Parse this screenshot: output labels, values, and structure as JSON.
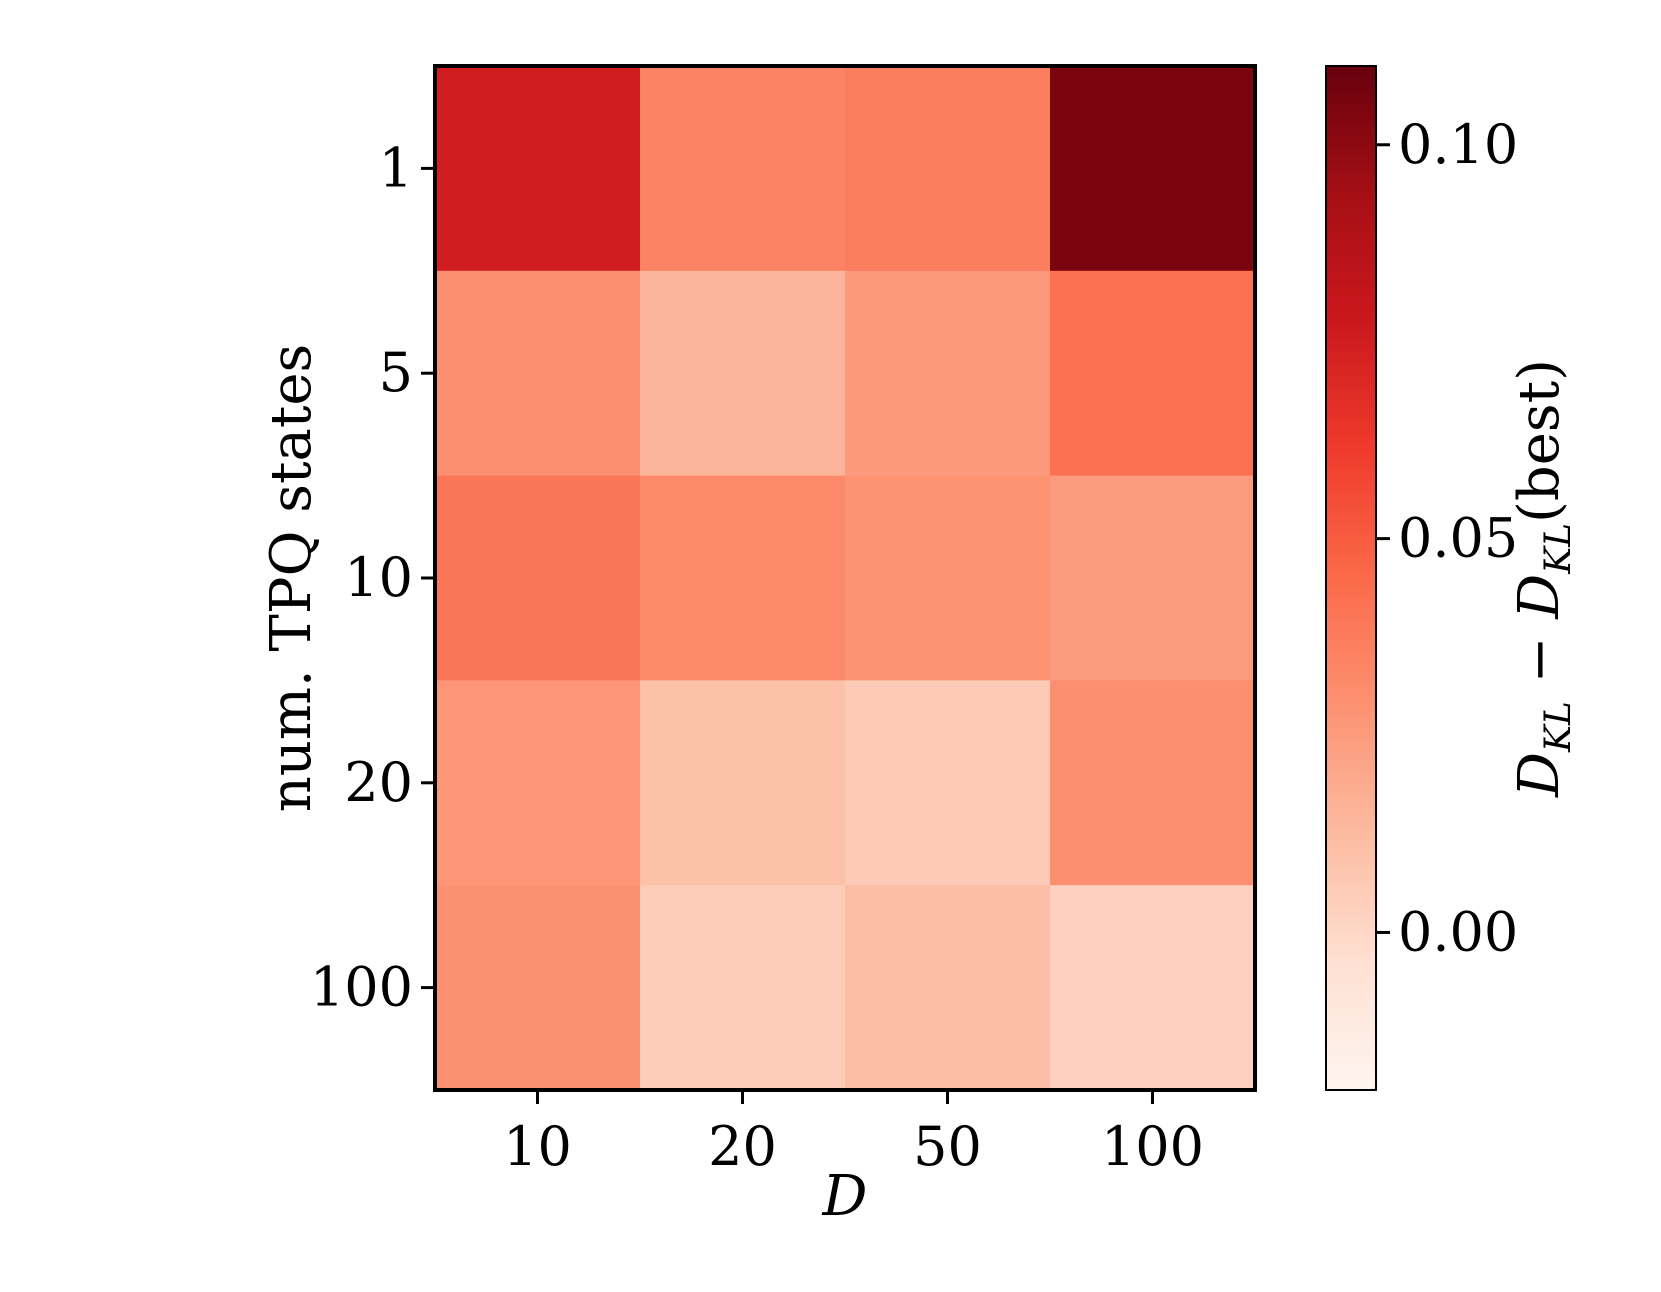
{
  "chart_data": {
    "type": "heatmap",
    "title": "",
    "xlabel": "D",
    "ylabel": "num. TPQ states",
    "x_categories": [
      "10",
      "20",
      "50",
      "100"
    ],
    "y_categories": [
      "1",
      "5",
      "10",
      "20",
      "100"
    ],
    "values": [
      [
        0.075,
        0.035,
        0.037,
        0.105
      ],
      [
        0.03,
        0.015,
        0.026,
        0.042
      ],
      [
        0.04,
        0.032,
        0.028,
        0.025
      ],
      [
        0.027,
        0.01,
        0.006,
        0.03
      ],
      [
        0.029,
        0.005,
        0.011,
        0.003
      ]
    ],
    "colorbar": {
      "label_main": "D",
      "label_sub": "KL",
      "label_mid": " − ",
      "label_main2": "D",
      "label_sub2": "KL",
      "label_tail": "(best)",
      "min": -0.02,
      "max": 0.11,
      "ticks": [
        "0.00",
        "0.05",
        "0.10"
      ],
      "tick_values": [
        0.0,
        0.05,
        0.1
      ],
      "colormap": "Reds"
    },
    "grid": false,
    "legend": "none"
  }
}
